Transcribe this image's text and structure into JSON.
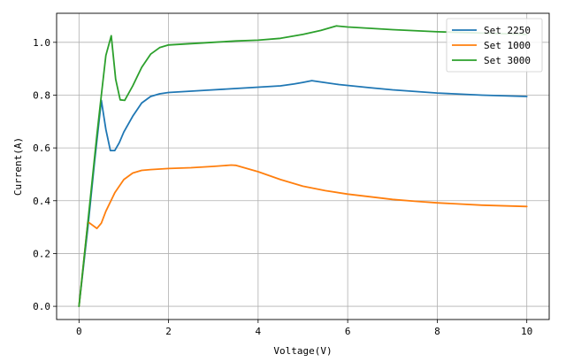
{
  "chart_data": {
    "type": "line",
    "xlabel": "Voltage(V)",
    "ylabel": "Current(A)",
    "xlim": [
      -0.5,
      10.5
    ],
    "ylim": [
      -0.05,
      1.11
    ],
    "xticks": [
      0,
      2,
      4,
      6,
      8,
      10
    ],
    "yticks": [
      0.0,
      0.2,
      0.4,
      0.6,
      0.8,
      1.0
    ],
    "xtick_labels": [
      "0",
      "2",
      "4",
      "6",
      "8",
      "10"
    ],
    "ytick_labels": [
      "0.0",
      "0.2",
      "0.4",
      "0.6",
      "0.8",
      "1.0"
    ],
    "grid": true,
    "legend_position": "top-right",
    "series": [
      {
        "name": "Set 2250",
        "color": "#1f77b4",
        "x": [
          0.0,
          0.2,
          0.35,
          0.5,
          0.6,
          0.7,
          0.8,
          0.9,
          1.0,
          1.2,
          1.4,
          1.6,
          1.8,
          2.0,
          2.5,
          3.0,
          3.5,
          4.0,
          4.5,
          4.8,
          5.0,
          5.2,
          5.4,
          5.8,
          6.5,
          7.0,
          8.0,
          9.0,
          10.0
        ],
        "y": [
          0.0,
          0.3,
          0.55,
          0.78,
          0.67,
          0.59,
          0.59,
          0.62,
          0.66,
          0.72,
          0.77,
          0.795,
          0.805,
          0.81,
          0.815,
          0.82,
          0.825,
          0.83,
          0.835,
          0.842,
          0.848,
          0.855,
          0.85,
          0.84,
          0.828,
          0.82,
          0.808,
          0.8,
          0.795
        ]
      },
      {
        "name": "Set 1000",
        "color": "#ff7f0e",
        "x": [
          0.0,
          0.2,
          0.4,
          0.5,
          0.6,
          0.8,
          1.0,
          1.2,
          1.4,
          1.6,
          1.8,
          2.0,
          2.5,
          3.0,
          3.4,
          3.5,
          4.0,
          4.5,
          5.0,
          5.5,
          6.0,
          6.5,
          7.0,
          7.5,
          8.0,
          9.0,
          10.0
        ],
        "y": [
          0.0,
          0.32,
          0.295,
          0.315,
          0.36,
          0.43,
          0.48,
          0.505,
          0.515,
          0.518,
          0.52,
          0.522,
          0.525,
          0.53,
          0.535,
          0.534,
          0.51,
          0.48,
          0.455,
          0.438,
          0.425,
          0.415,
          0.405,
          0.398,
          0.392,
          0.383,
          0.378
        ]
      },
      {
        "name": "Set 3000",
        "color": "#2ca02c",
        "x": [
          0.0,
          0.2,
          0.4,
          0.5,
          0.6,
          0.72,
          0.82,
          0.92,
          1.02,
          1.2,
          1.4,
          1.6,
          1.8,
          2.0,
          2.5,
          3.0,
          3.5,
          4.0,
          4.5,
          5.0,
          5.4,
          5.75,
          6.0,
          7.0,
          8.0,
          9.0,
          10.0
        ],
        "y": [
          0.0,
          0.32,
          0.65,
          0.8,
          0.95,
          1.025,
          0.86,
          0.782,
          0.78,
          0.835,
          0.905,
          0.955,
          0.98,
          0.99,
          0.995,
          1.0,
          1.005,
          1.008,
          1.015,
          1.03,
          1.045,
          1.062,
          1.058,
          1.048,
          1.04,
          1.035,
          1.03
        ]
      }
    ]
  }
}
